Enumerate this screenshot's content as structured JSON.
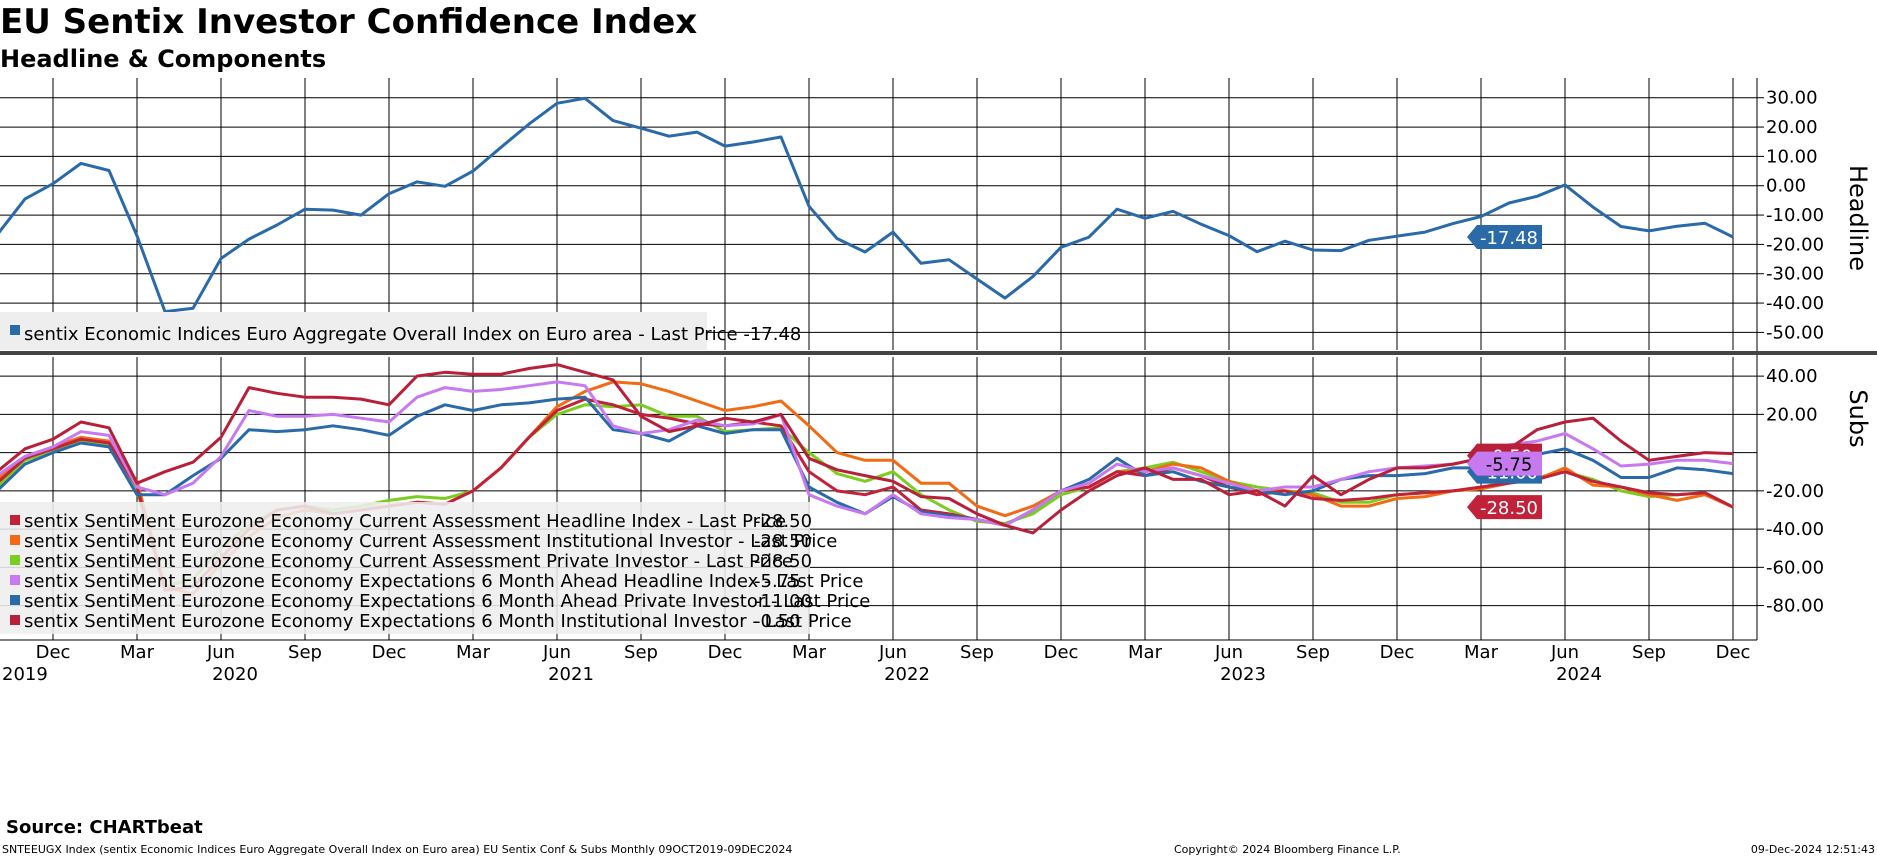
{
  "title": "EU Sentix Investor Confidence Index",
  "subtitle": "Headline & Components",
  "source": "Source: CHARTbeat",
  "footer": {
    "left": "SNTEEUGX Index (sentix Economic Indices Euro Aggregate  Overall Index on Euro area) EU Sentix Conf & Subs  Monthly 09OCT2019-09DEC2024",
    "middle": "Copyright© 2024 Bloomberg Finance L.P.",
    "right": "09-Dec-2024 12:51:43"
  },
  "colors": {
    "headline": "#2a6aa8",
    "ca_headline": "#c2213a",
    "ca_institutional": "#f26a13",
    "ca_private": "#7ccd22",
    "exp_headline": "#c77af0",
    "exp_private": "#2a6aa8",
    "exp_institutional": "#b8203a"
  },
  "chart_data": [
    {
      "type": "line",
      "panel": "top",
      "axis_title": "Headline",
      "x": [
        "2019-10",
        "2019-11",
        "2019-12",
        "2020-01",
        "2020-02",
        "2020-03",
        "2020-04",
        "2020-05",
        "2020-06",
        "2020-07",
        "2020-08",
        "2020-09",
        "2020-10",
        "2020-11",
        "2020-12",
        "2021-01",
        "2021-02",
        "2021-03",
        "2021-04",
        "2021-05",
        "2021-06",
        "2021-07",
        "2021-08",
        "2021-09",
        "2021-10",
        "2021-11",
        "2021-12",
        "2022-01",
        "2022-02",
        "2022-03",
        "2022-04",
        "2022-05",
        "2022-06",
        "2022-07",
        "2022-08",
        "2022-09",
        "2022-10",
        "2022-11",
        "2022-12",
        "2023-01",
        "2023-02",
        "2023-03",
        "2023-04",
        "2023-05",
        "2023-06",
        "2023-07",
        "2023-08",
        "2023-09",
        "2023-10",
        "2023-11",
        "2023-12",
        "2024-01",
        "2024-02",
        "2024-03",
        "2024-04",
        "2024-05",
        "2024-06",
        "2024-07",
        "2024-08",
        "2024-09",
        "2024-10",
        "2024-11",
        "2024-12"
      ],
      "ylim": [
        -56,
        34
      ],
      "yticks": [
        "30.00",
        "20.00",
        "10.00",
        "0.00",
        "-10.00",
        "-20.00",
        "-30.00",
        "-40.00",
        "-50.00"
      ],
      "series": [
        {
          "name": "sentix Economic Indices Euro Aggregate Overall Index on Euro area - Last Price -17.48",
          "values": [
            -16.8,
            -4.5,
            0.7,
            7.6,
            5.2,
            -17.1,
            -42.9,
            -41.8,
            -24.8,
            -18.2,
            -13.4,
            -8.0,
            -8.3,
            -10.0,
            -2.7,
            1.3,
            -0.2,
            5.0,
            13.1,
            21.0,
            28.1,
            29.8,
            22.2,
            19.6,
            16.9,
            18.3,
            13.5,
            14.9,
            16.6,
            -7.0,
            -18.0,
            -22.6,
            -15.8,
            -26.4,
            -25.2,
            -31.8,
            -38.3,
            -30.9,
            -21.0,
            -17.5,
            -8.0,
            -11.1,
            -8.7,
            -13.1,
            -17.0,
            -22.5,
            -18.9,
            -21.9,
            -22.1,
            -18.6,
            -17.2,
            -15.8,
            -12.9,
            -10.5,
            -5.9,
            -3.6,
            0.3,
            -7.3,
            -13.9,
            -15.4,
            -13.8,
            -12.8,
            -17.48
          ]
        }
      ],
      "last_label": "-17.48"
    },
    {
      "type": "line",
      "panel": "bottom",
      "axis_title": "Subs",
      "ylim": [
        -98,
        50
      ],
      "yticks": [
        "40.00",
        "20.00",
        "-20.00",
        "-40.00",
        "-60.00",
        "-80.00"
      ],
      "xaxis": {
        "month_labels": [
          "Dec",
          "Mar",
          "Jun",
          "Sep",
          "Dec",
          "Mar",
          "Jun",
          "Sep",
          "Dec",
          "Mar",
          "Jun",
          "Sep",
          "Dec",
          "Mar",
          "Jun",
          "Sep",
          "Dec",
          "Mar",
          "Jun",
          "Sep",
          "Dec"
        ],
        "year_labels": [
          "2019",
          "2020",
          "2021",
          "2022",
          "2023",
          "2024"
        ]
      },
      "series": [
        {
          "name": "sentix SentiMent Eurozone Economy Current Assessment Headline Index - Last Price",
          "last": "-28.50",
          "values": [
            -16,
            -3,
            2,
            7,
            5,
            -18,
            -72,
            -70,
            -55,
            -40,
            -30,
            -28,
            -32,
            -30,
            -28,
            -26,
            -27,
            -20,
            -8,
            8,
            22,
            28,
            25,
            20,
            18,
            15,
            14,
            16,
            14,
            -10,
            -20,
            -22,
            -18,
            -30,
            -32,
            -35,
            -38,
            -30,
            -20,
            -18,
            -10,
            -12,
            -8,
            -12,
            -18,
            -22,
            -20,
            -24,
            -25,
            -24,
            -22,
            -21,
            -20,
            -18,
            -16,
            -14,
            -10,
            -15,
            -18,
            -21,
            -22,
            -21,
            -28.5
          ]
        },
        {
          "name": "sentix SentiMent Eurozone Economy Current Assessment Institutional Investor - Last Price",
          "last": "-28.50",
          "values": [
            -14,
            -2,
            3,
            8,
            6,
            -15,
            -70,
            -74,
            -58,
            -44,
            -34,
            -30,
            -32,
            -30,
            -28,
            -26,
            -27,
            -20,
            -8,
            8,
            24,
            32,
            37,
            36,
            32,
            27,
            22,
            24,
            27,
            14,
            0,
            -4,
            -4,
            -16,
            -16,
            -28,
            -33,
            -28,
            -20,
            -18,
            -10,
            -10,
            -6,
            -8,
            -15,
            -20,
            -20,
            -22,
            -28,
            -28,
            -24,
            -23,
            -20,
            -19,
            -16,
            -14,
            -8,
            -17,
            -18,
            -22,
            -25,
            -22,
            -28.5
          ]
        },
        {
          "name": "sentix SentiMent Eurozone Economy Current Assessment Private Investor - Last Price",
          "last": "-28.50",
          "values": [
            -18,
            -4,
            1,
            6,
            4,
            -20,
            -70,
            -66,
            -50,
            -38,
            -30,
            -28,
            -30,
            -28,
            -25,
            -23,
            -24,
            -20,
            -8,
            8,
            20,
            25,
            24,
            25,
            19,
            19,
            11,
            12,
            13,
            0,
            -11,
            -15,
            -10,
            -22,
            -30,
            -36,
            -37,
            -32,
            -22,
            -18,
            -10,
            -8,
            -5,
            -10,
            -15,
            -18,
            -20,
            -21,
            -26,
            -26,
            -22,
            -21,
            -20,
            -19,
            -13,
            -13,
            -10,
            -14,
            -20,
            -23,
            -22,
            -21,
            -28.5
          ]
        },
        {
          "name": "sentix SentiMent Eurozone Economy Expectations 6 Month Ahead Headline Index - Last Price",
          "last": "-5.75",
          "values": [
            -12,
            -2,
            3,
            11,
            9,
            -18,
            -22,
            -16,
            -2,
            22,
            19,
            19,
            20,
            18,
            16,
            29,
            34,
            32,
            33,
            35,
            37,
            35,
            14,
            10,
            12,
            17,
            14,
            15,
            20,
            -22,
            -28,
            -32,
            -22,
            -32,
            -34,
            -35,
            -38,
            -30,
            -20,
            -16,
            -6,
            -10,
            -8,
            -12,
            -16,
            -20,
            -18,
            -18,
            -14,
            -10,
            -8,
            -7,
            -6,
            -3,
            4,
            6,
            10,
            2,
            -7,
            -6,
            -4,
            -4,
            -5.75
          ]
        },
        {
          "name": "sentix SentiMent Eurozone Economy Expectations 6 Month Ahead Private Investor - Last Price",
          "last": "-11.00",
          "values": [
            -20,
            -6,
            0,
            5,
            3,
            -22,
            -22,
            -12,
            -3,
            12,
            11,
            12,
            14,
            12,
            9,
            19,
            25,
            22,
            25,
            26,
            28,
            29,
            12,
            10,
            6,
            14,
            10,
            12,
            12,
            -18,
            -26,
            -32,
            -23,
            -31,
            -33,
            -35,
            -38,
            -30,
            -20,
            -14,
            -3,
            -12,
            -10,
            -15,
            -18,
            -20,
            -22,
            -20,
            -14,
            -12,
            -12,
            -11,
            -8,
            -8,
            -2,
            -1,
            2,
            -4,
            -13,
            -13,
            -8,
            -9,
            -11
          ]
        },
        {
          "name": "sentix SentiMent Eurozone Economy Expectations 6 Month Institutional Investor - Last Price",
          "last": "-0.50",
          "values": [
            -10,
            2,
            7,
            16,
            13,
            -16,
            -10,
            -5,
            8,
            34,
            31,
            29,
            29,
            28,
            25,
            40,
            42,
            41,
            41,
            44,
            46,
            42,
            38,
            19,
            11,
            14,
            18,
            16,
            20,
            -3,
            -9,
            -12,
            -15,
            -23,
            -24,
            -32,
            -38,
            -42,
            -30,
            -20,
            -12,
            -8,
            -14,
            -14,
            -22,
            -20,
            -28,
            -12,
            -22,
            -14,
            -8,
            -8,
            -6,
            -3,
            2,
            12,
            16,
            18,
            6,
            -4,
            -2,
            0,
            -0.5
          ]
        }
      ],
      "last_labels": [
        "-0.50",
        "-5.75",
        "-11.00",
        "-28.50"
      ]
    }
  ]
}
